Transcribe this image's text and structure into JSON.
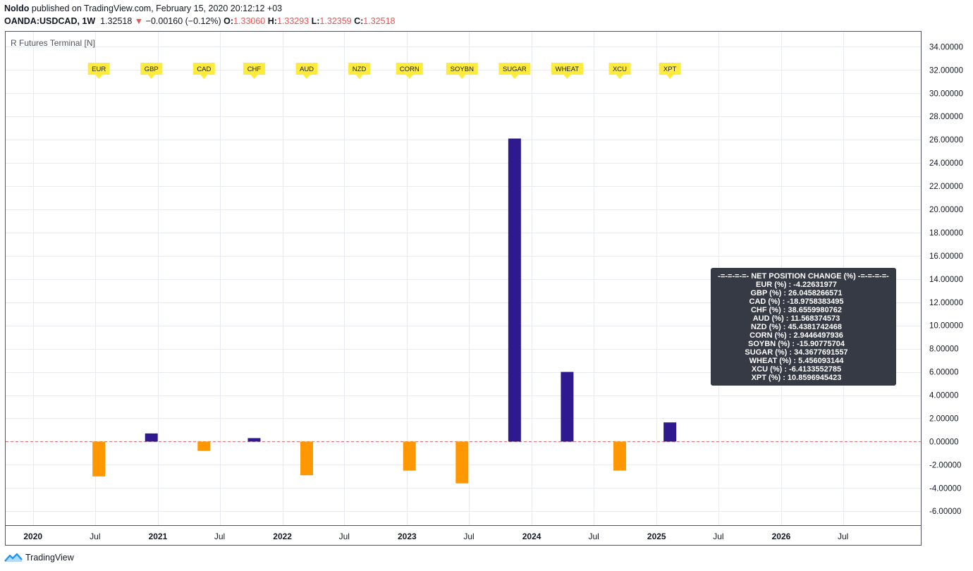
{
  "header": {
    "author": "Noldo",
    "published": " published on TradingView.com, February 15, 2020 20:12:12 +03",
    "symbol": "OANDA:USDCAD, 1W",
    "price": "1.32518",
    "change_arrow": "▼",
    "change": "−0.00160 (−0.12%)",
    "o_label": "O:",
    "o_value": "1.33060",
    "h_label": "H:",
    "h_value": "1.33293",
    "l_label": "L:",
    "l_value": "1.32359",
    "c_label": "C:",
    "c_value": "1.32518"
  },
  "brand": {
    "name": "TradingView"
  },
  "colors": {
    "positive": "#2e1a8e",
    "negative": "#ff9800",
    "zero_line": "#e57373",
    "grid": "#e8ecf1",
    "label_bg": "#ffeb3b",
    "panel_bg": "#363a45",
    "panel_text": "#ffffff",
    "axis_text": "#131722"
  },
  "chart_data": {
    "type": "bar",
    "indicator_title": "R Futures Terminal [N]",
    "categories": [
      "EUR",
      "GBP",
      "CAD",
      "CHF",
      "AUD",
      "NZD",
      "CORN",
      "SOYBN",
      "SUGAR",
      "WHEAT",
      "XCU",
      "XPT"
    ],
    "values": [
      -3.0,
      0.7,
      -0.8,
      0.3,
      -2.9,
      0.0,
      -2.5,
      -3.6,
      26.1,
      6.0,
      -2.5,
      1.65
    ],
    "bar_x_dates": [
      "2020-07-12",
      "2020-12-13",
      "2021-05-16",
      "2021-10-10",
      "2022-03-13",
      "2022-08-14",
      "2023-01-08",
      "2023-06-11",
      "2023-11-12",
      "2024-04-14",
      "2024-09-15",
      "2025-02-09"
    ],
    "ylim": [
      -7.2,
      35.3
    ],
    "y_ticks": [
      -6,
      -4,
      -2,
      0,
      2,
      4,
      6,
      8,
      10,
      12,
      14,
      16,
      18,
      20,
      22,
      24,
      26,
      28,
      30,
      32,
      34
    ],
    "y_tick_labels": [
      "-6.00000",
      "-4.00000",
      "-2.00000",
      "0.00000",
      "2.00000",
      "4.00000",
      "6.00000",
      "8.00000",
      "10.00000",
      "12.00000",
      "14.00000",
      "16.00000",
      "18.00000",
      "20.00000",
      "22.00000",
      "24.00000",
      "26.00000",
      "28.00000",
      "30.00000",
      "32.00000",
      "34.00000"
    ],
    "xlim": [
      "2019-10-13",
      "2027-02-14"
    ],
    "x_ticks": [
      {
        "date": "2020-01-01",
        "label": "2020",
        "major": true
      },
      {
        "date": "2020-07-01",
        "label": "Jul",
        "major": false
      },
      {
        "date": "2021-01-01",
        "label": "2021",
        "major": true
      },
      {
        "date": "2021-07-01",
        "label": "Jul",
        "major": false
      },
      {
        "date": "2022-01-01",
        "label": "2022",
        "major": true
      },
      {
        "date": "2022-07-01",
        "label": "Jul",
        "major": false
      },
      {
        "date": "2023-01-01",
        "label": "2023",
        "major": true
      },
      {
        "date": "2023-07-01",
        "label": "Jul",
        "major": false
      },
      {
        "date": "2024-01-01",
        "label": "2024",
        "major": true
      },
      {
        "date": "2024-07-01",
        "label": "Jul",
        "major": false
      },
      {
        "date": "2025-01-01",
        "label": "2025",
        "major": true
      },
      {
        "date": "2025-07-01",
        "label": "Jul",
        "major": false
      },
      {
        "date": "2026-01-01",
        "label": "2026",
        "major": true
      },
      {
        "date": "2026-07-01",
        "label": "Jul",
        "major": false
      }
    ],
    "grid": true,
    "zero_line": "dashed",
    "info_panel": {
      "title": "-=-=-=-=- NET POSITION CHANGE (%) -=-=-=-=-",
      "rows": [
        "EUR (%)       : -4.22631977",
        "GBP (%)     : 26.0458266571",
        "CAD (%)     : -18.9758383495",
        "CHF (%)     : 38.6559980762",
        "AUD (%)      : 11.568374573",
        "NZD (%)     : 45.4381742468",
        "CORN (%)      : 2.9446497936",
        "SOYBN (%)     : -15.90775704",
        "SUGAR (%)     : 34.3677691557",
        "WHEAT (%)      : 5.456093144",
        "XCU (%)     : -6.4133552785",
        "XPT (%)     : 10.8596945423"
      ]
    }
  }
}
